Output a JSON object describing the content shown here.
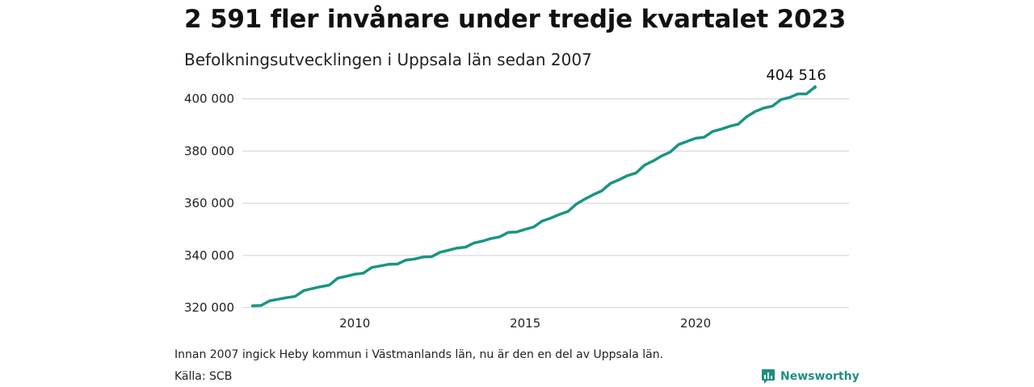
{
  "header": {
    "title": "2 591 fler invånare under tredje kvartalet 2023",
    "subtitle": "Befolkningsutvecklingen i Uppsala län sedan 2007"
  },
  "footer": {
    "note": "Innan 2007 ingick Heby kommun i Västmanlands län, nu är den en del av Uppsala län.",
    "source": "Källa: SCB",
    "brand": "Newsworthy"
  },
  "colors": {
    "line": "#1a9582",
    "grid": "#d9d9d9",
    "brand": "#1f8f80"
  },
  "chart_data": {
    "type": "line",
    "title": "2 591 fler invånare under tredje kvartalet 2023",
    "subtitle": "Befolkningsutvecklingen i Uppsala län sedan 2007",
    "xlabel": "",
    "ylabel": "",
    "xlim": [
      2006.7,
      2024.5
    ],
    "ylim": [
      318000,
      407000
    ],
    "grid": "horizontal",
    "legend": "none",
    "x_ticks": [
      2010,
      2015,
      2020
    ],
    "x_tick_labels": [
      "2010",
      "2015",
      "2020"
    ],
    "y_ticks": [
      320000,
      340000,
      360000,
      380000,
      400000
    ],
    "y_tick_labels": [
      "320 000",
      "340 000",
      "360 000",
      "380 000",
      "400 000"
    ],
    "end_label": "404 516",
    "series": [
      {
        "x": [
          2007.0,
          2007.25,
          2007.5,
          2007.75,
          2008.0,
          2008.25,
          2008.5,
          2008.75,
          2009.0,
          2009.25,
          2009.5,
          2009.75,
          2010.0,
          2010.25,
          2010.5,
          2010.75,
          2011.0,
          2011.25,
          2011.5,
          2011.75,
          2012.0,
          2012.25,
          2012.5,
          2012.75,
          2013.0,
          2013.25,
          2013.5,
          2013.75,
          2014.0,
          2014.25,
          2014.5,
          2014.75,
          2015.0,
          2015.25,
          2015.5,
          2015.75,
          2016.0,
          2016.25,
          2016.5,
          2016.75,
          2017.0,
          2017.25,
          2017.5,
          2017.75,
          2018.0,
          2018.25,
          2018.5,
          2018.75,
          2019.0,
          2019.25,
          2019.5,
          2019.75,
          2020.0,
          2020.25,
          2020.5,
          2020.75,
          2021.0,
          2021.25,
          2021.5,
          2021.75,
          2022.0,
          2022.25,
          2022.5,
          2022.75,
          2023.0,
          2023.25,
          2023.5
        ],
        "values": [
          320700,
          320800,
          322600,
          323200,
          323800,
          324300,
          326500,
          327300,
          328000,
          328600,
          331300,
          332000,
          332800,
          333200,
          335400,
          336000,
          336600,
          336700,
          338200,
          338600,
          339400,
          339500,
          341200,
          342000,
          342800,
          343200,
          344800,
          345500,
          346500,
          347100,
          348800,
          349000,
          350000,
          350900,
          353200,
          354300,
          355700,
          356800,
          359700,
          361600,
          363300,
          364800,
          367600,
          369000,
          370600,
          371600,
          374600,
          376200,
          378100,
          379600,
          382500,
          383700,
          384900,
          385300,
          387500,
          388400,
          389500,
          390300,
          393200,
          395200,
          396500,
          397200,
          399700,
          400500,
          401900,
          401900,
          404516
        ]
      }
    ]
  }
}
